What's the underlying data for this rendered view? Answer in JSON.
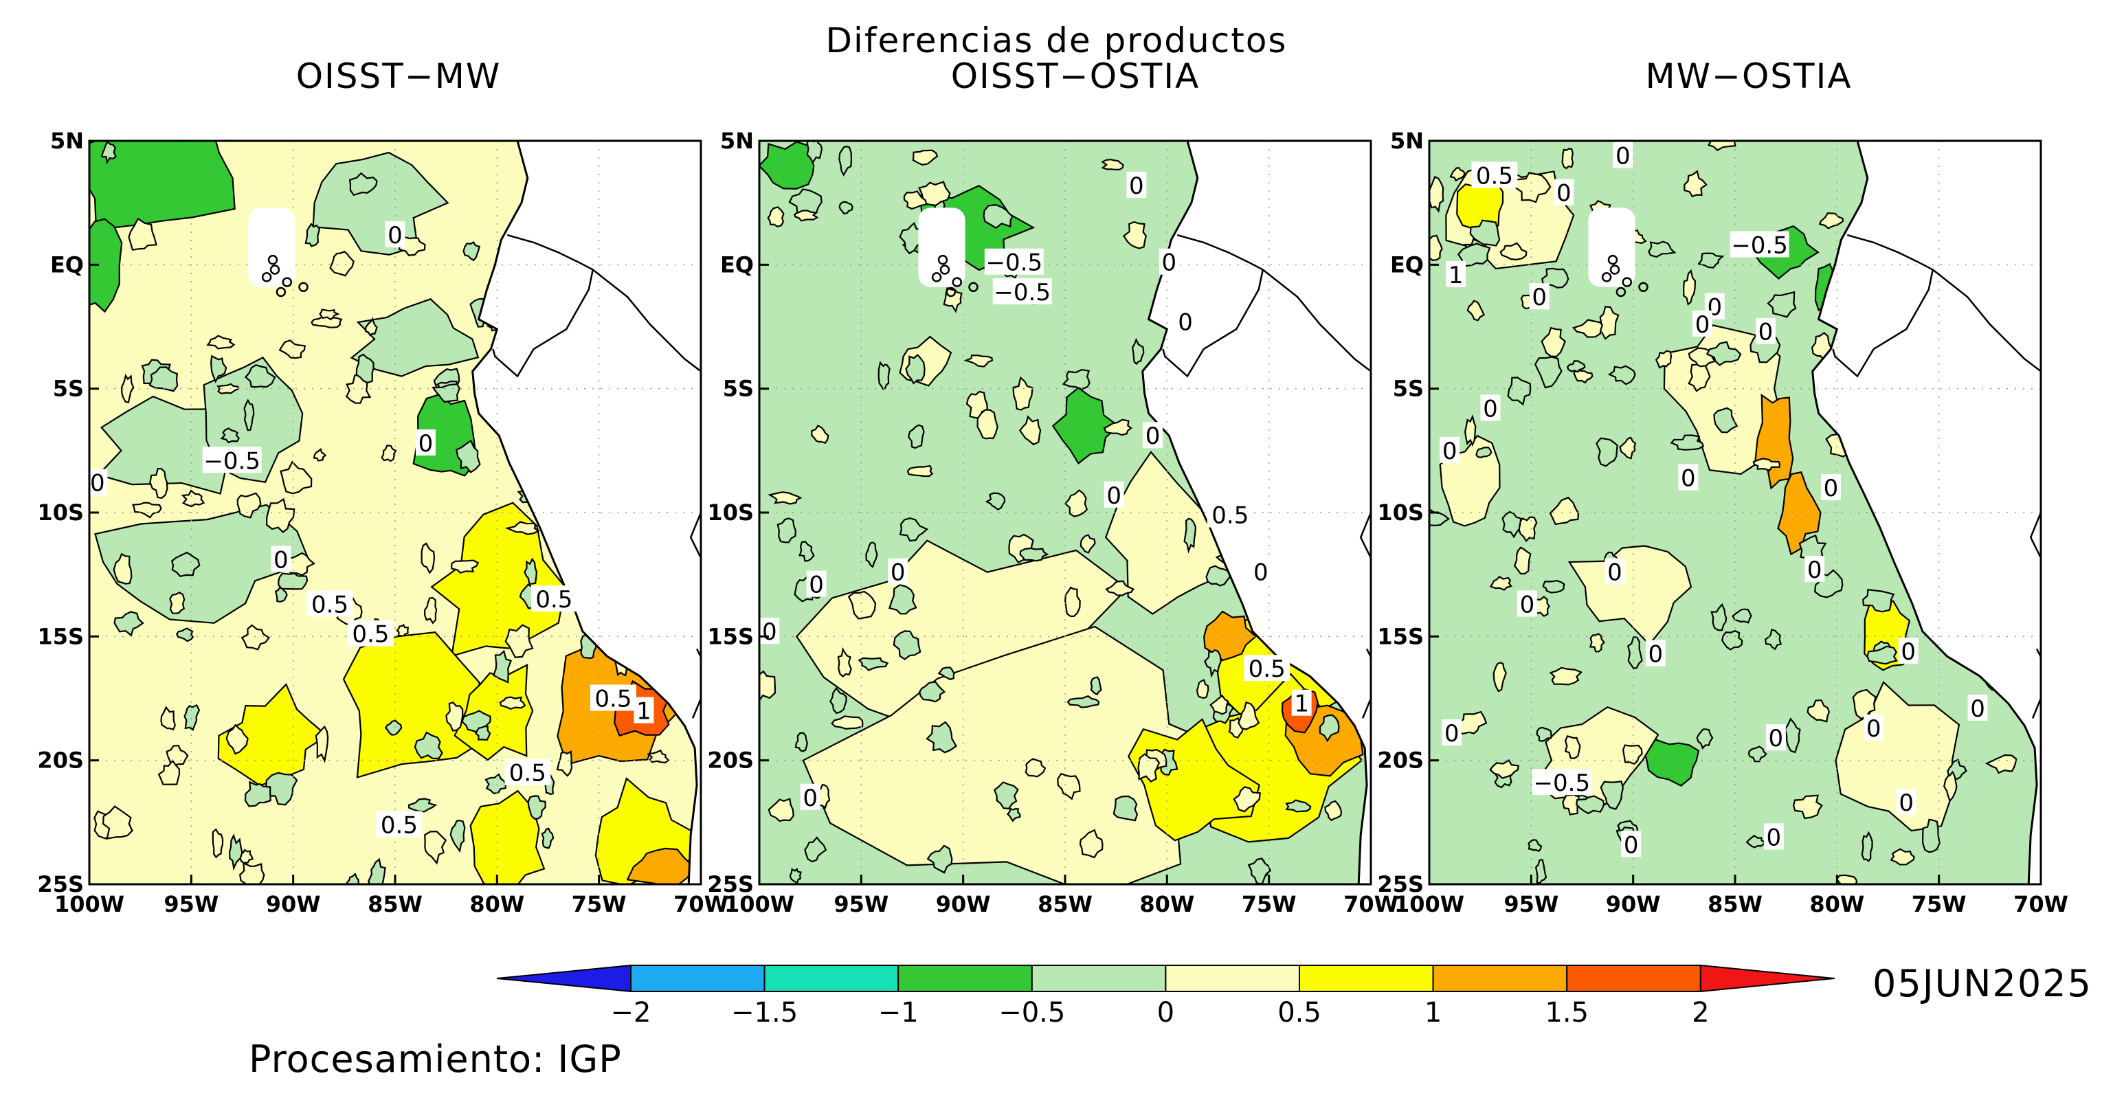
{
  "figure": {
    "title": "Diferencias de productos",
    "date": "05JUN2025",
    "credit": "Procesamiento: IGP"
  },
  "panels": [
    {
      "title": "OISST−MW",
      "contour_labels": [
        {
          "lon": -93,
          "lat": -7.9,
          "text": "−0.5"
        },
        {
          "lon": -99.6,
          "lat": -8.8,
          "text": "0"
        },
        {
          "lon": -83.5,
          "lat": -7.2,
          "text": "0"
        },
        {
          "lon": -85,
          "lat": 1.2,
          "text": "0"
        },
        {
          "lon": -90.6,
          "lat": -11.9,
          "text": "0"
        },
        {
          "lon": -88.2,
          "lat": -13.7,
          "text": "0.5"
        },
        {
          "lon": -86.2,
          "lat": -14.9,
          "text": "0.5"
        },
        {
          "lon": -77.2,
          "lat": -13.5,
          "text": "0.5"
        },
        {
          "lon": -74.3,
          "lat": -17.5,
          "text": "0.5"
        },
        {
          "lon": -72.8,
          "lat": -18,
          "text": "1"
        },
        {
          "lon": -78.5,
          "lat": -20.5,
          "text": "0.5"
        },
        {
          "lon": -84.8,
          "lat": -22.6,
          "text": "0.5"
        }
      ]
    },
    {
      "title": "OISST−OSTIA",
      "contour_labels": [
        {
          "lon": -81.5,
          "lat": 3.2,
          "text": "0"
        },
        {
          "lon": -87.5,
          "lat": 0.1,
          "text": "−0.5"
        },
        {
          "lon": -87.1,
          "lat": -1.1,
          "text": "−0.5"
        },
        {
          "lon": -79.9,
          "lat": 0.1,
          "text": "0"
        },
        {
          "lon": -79.1,
          "lat": -2.3,
          "text": "0"
        },
        {
          "lon": -80.7,
          "lat": -6.9,
          "text": "0"
        },
        {
          "lon": -82.6,
          "lat": -9.3,
          "text": "0"
        },
        {
          "lon": -76.9,
          "lat": -10.1,
          "text": "0.5"
        },
        {
          "lon": -75.4,
          "lat": -12.4,
          "text": "0"
        },
        {
          "lon": -93.2,
          "lat": -12.4,
          "text": "0"
        },
        {
          "lon": -97.2,
          "lat": -12.9,
          "text": "0"
        },
        {
          "lon": -99.5,
          "lat": -14.8,
          "text": "0"
        },
        {
          "lon": -75.1,
          "lat": -16.3,
          "text": "0.5"
        },
        {
          "lon": -73.4,
          "lat": -17.7,
          "text": "1"
        },
        {
          "lon": -97.5,
          "lat": -21.5,
          "text": "0"
        }
      ]
    },
    {
      "title": "MW−OSTIA",
      "contour_labels": [
        {
          "lon": -96.8,
          "lat": 3.6,
          "text": "0.5"
        },
        {
          "lon": -90.5,
          "lat": 4.4,
          "text": "0"
        },
        {
          "lon": -93.4,
          "lat": 2.9,
          "text": "0"
        },
        {
          "lon": -83.8,
          "lat": 0.8,
          "text": "−0.5"
        },
        {
          "lon": -98.7,
          "lat": -0.4,
          "text": "1"
        },
        {
          "lon": -94.6,
          "lat": -1.3,
          "text": "0"
        },
        {
          "lon": -86,
          "lat": -1.7,
          "text": "0"
        },
        {
          "lon": -86.6,
          "lat": -2.4,
          "text": "0"
        },
        {
          "lon": -83.5,
          "lat": -2.7,
          "text": "0"
        },
        {
          "lon": -97,
          "lat": -5.8,
          "text": "0"
        },
        {
          "lon": -99,
          "lat": -7.5,
          "text": "0"
        },
        {
          "lon": -87.3,
          "lat": -8.6,
          "text": "0"
        },
        {
          "lon": -80.3,
          "lat": -9,
          "text": "0"
        },
        {
          "lon": -81.1,
          "lat": -12.3,
          "text": "0"
        },
        {
          "lon": -90.9,
          "lat": -12.4,
          "text": "0"
        },
        {
          "lon": -95.2,
          "lat": -13.7,
          "text": "0"
        },
        {
          "lon": -88.9,
          "lat": -15.7,
          "text": "0"
        },
        {
          "lon": -98.9,
          "lat": -18.9,
          "text": "0"
        },
        {
          "lon": -83,
          "lat": -19.1,
          "text": "0"
        },
        {
          "lon": -78.2,
          "lat": -18.7,
          "text": "0"
        },
        {
          "lon": -76.5,
          "lat": -15.6,
          "text": "0"
        },
        {
          "lon": -73.1,
          "lat": -17.9,
          "text": "0"
        },
        {
          "lon": -93.5,
          "lat": -20.9,
          "text": "−0.5"
        },
        {
          "lon": -76.6,
          "lat": -21.7,
          "text": "0"
        },
        {
          "lon": -90.1,
          "lat": -23.4,
          "text": "0"
        },
        {
          "lon": -83.1,
          "lat": -23.1,
          "text": "0"
        }
      ]
    }
  ],
  "axes": {
    "lon_ticks": [
      -100,
      -95,
      -90,
      -85,
      -80,
      -75,
      -70
    ],
    "lon_labels": [
      "100W",
      "95W",
      "90W",
      "85W",
      "80W",
      "75W",
      "70W"
    ],
    "lat_ticks": [
      5,
      0,
      -5,
      -10,
      -15,
      -20,
      -25
    ],
    "lat_labels": [
      "5N",
      "EQ",
      "5S",
      "10S",
      "15S",
      "20S",
      "25S"
    ]
  },
  "colorbar": {
    "levels": [
      "-2",
      "-1.5",
      "-1",
      "-0.5",
      "0",
      "0.5",
      "1",
      "1.5",
      "2"
    ],
    "tick_labels": [
      "−2",
      "−1.5",
      "−1",
      "−0.5",
      "0",
      "0.5",
      "1",
      "1.5",
      "2"
    ],
    "colors": [
      "#1c1ce6",
      "#1eaaf0",
      "#17e0b5",
      "#34c834",
      "#b9e8b4",
      "#fcfcbc",
      "#fcfc00",
      "#fcaa00",
      "#fc5a00",
      "#f01616"
    ]
  }
}
